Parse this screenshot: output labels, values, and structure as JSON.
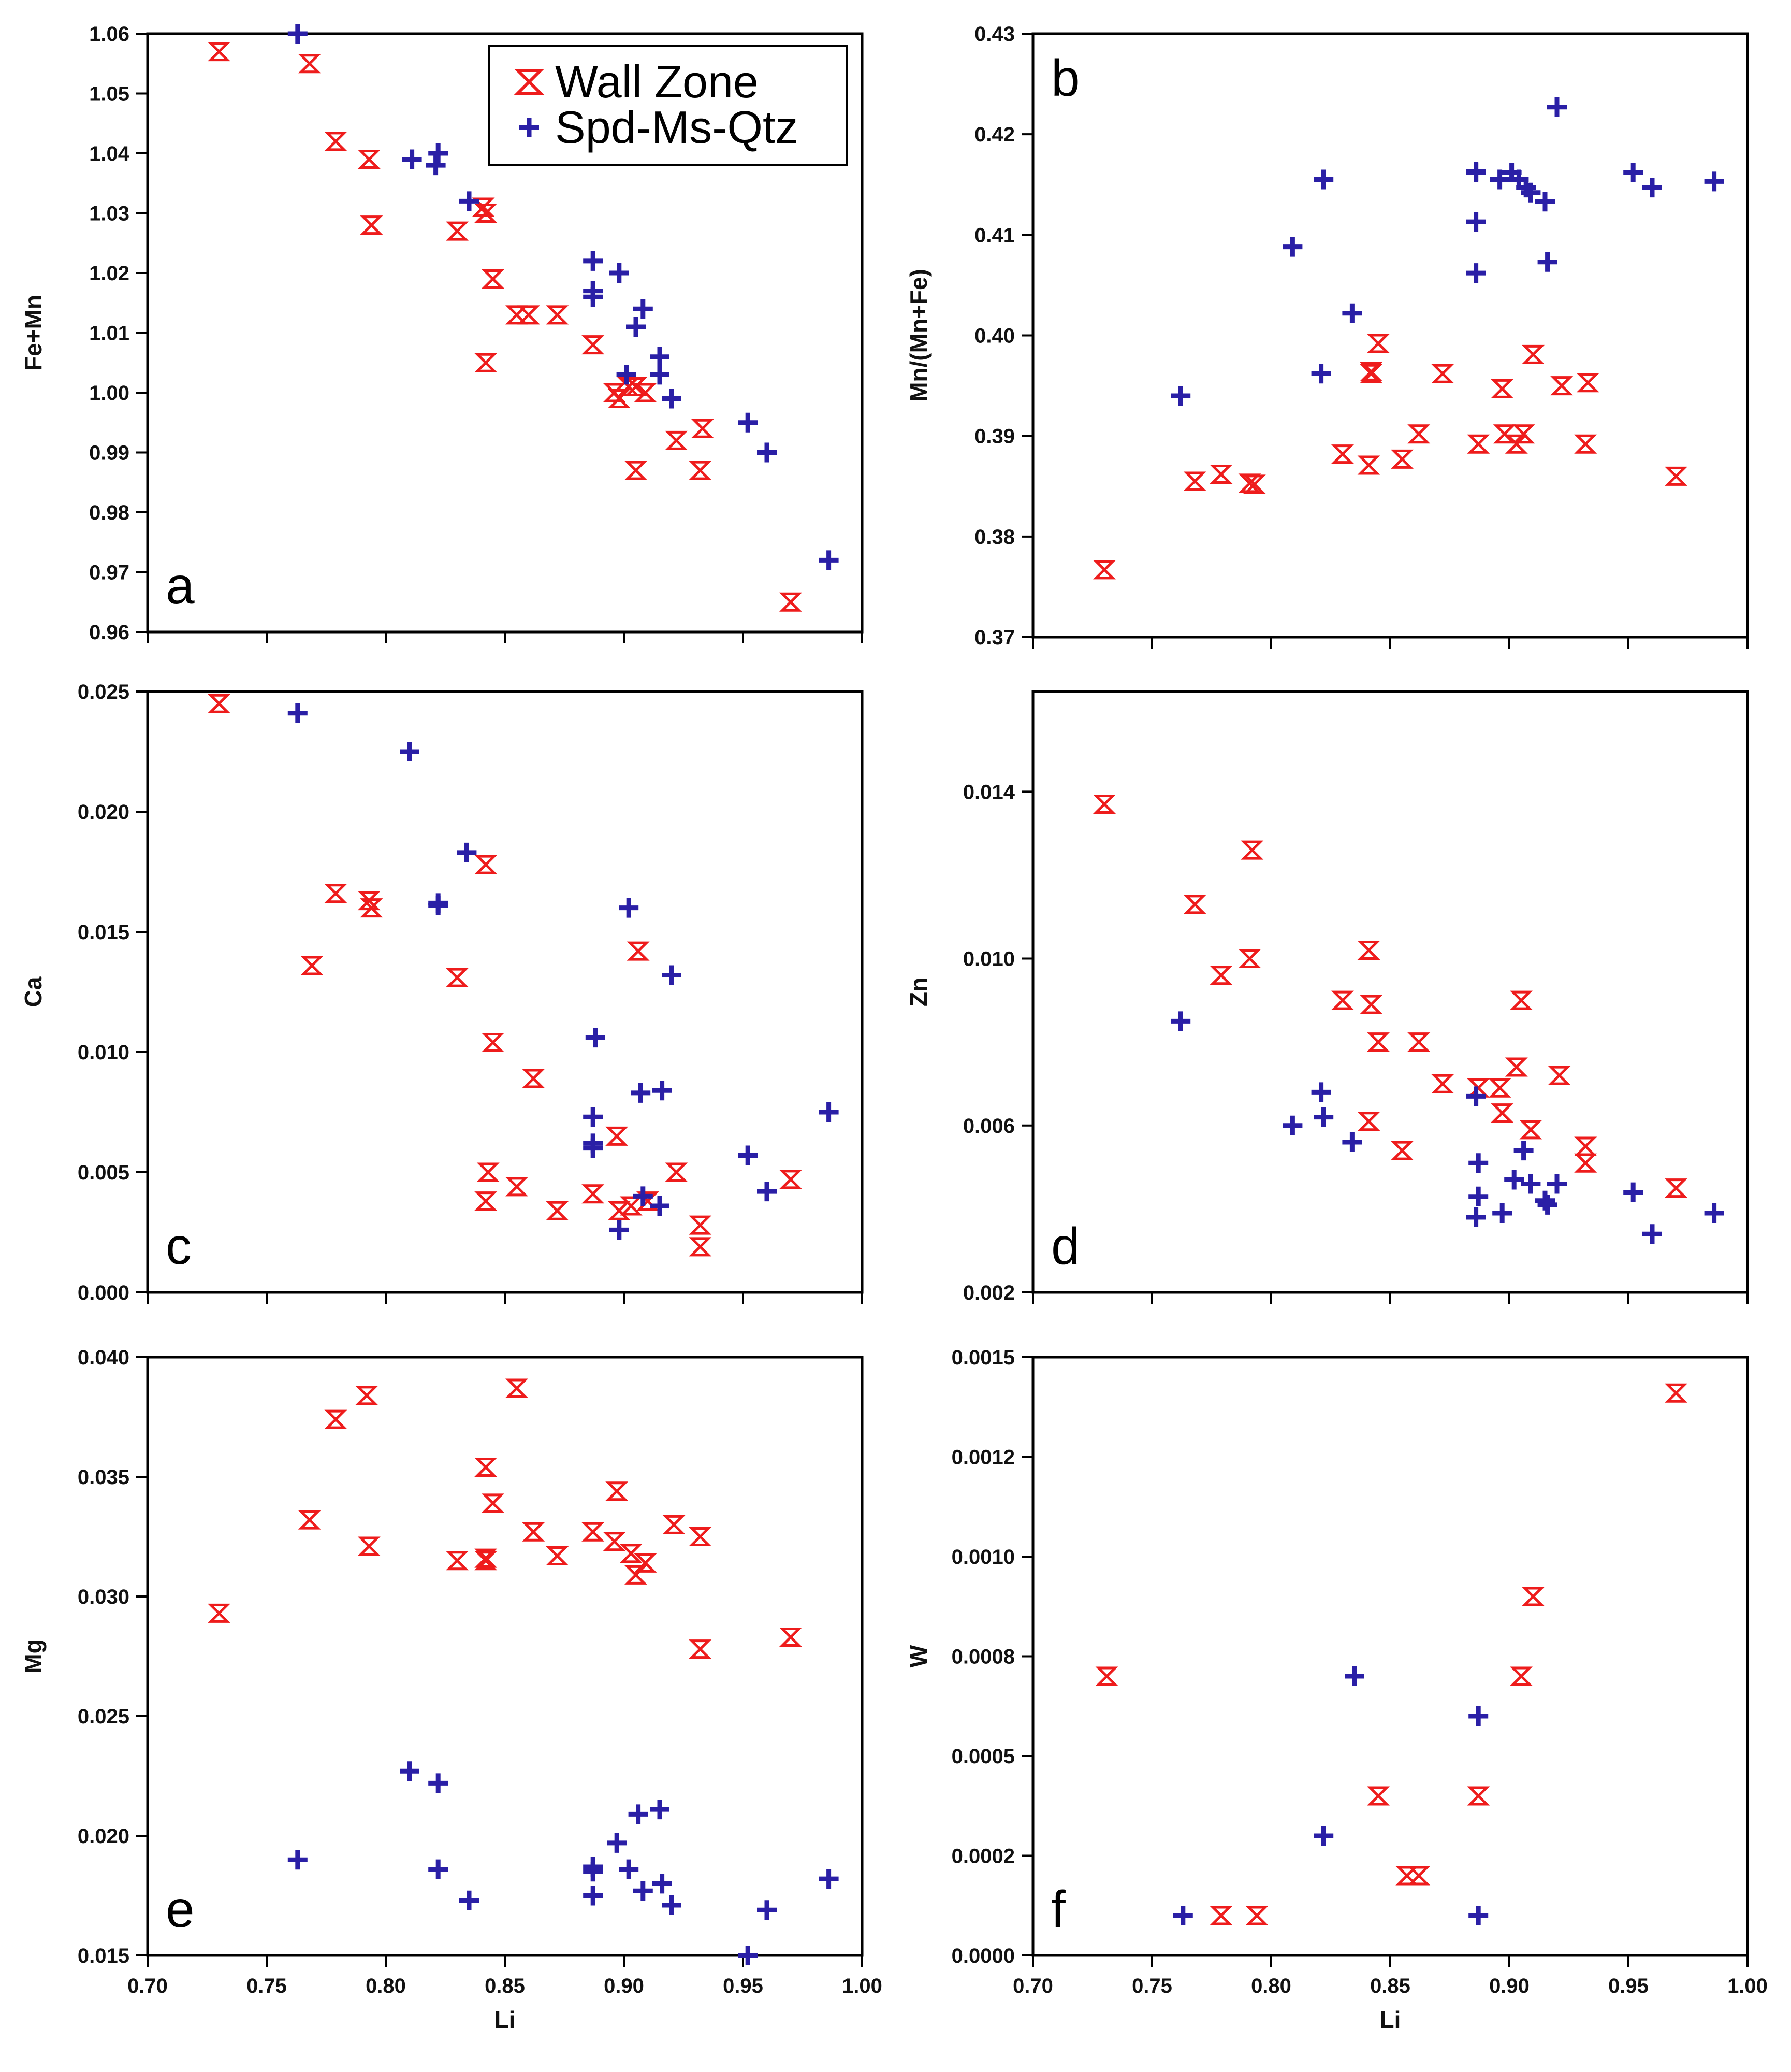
{
  "figure": {
    "legend": [
      {
        "label": "Wall Zone",
        "marker": "hourglass",
        "color": "#ee1c1c"
      },
      {
        "label": "Spd-Ms-Qtz",
        "marker": "plus",
        "color": "#2a1fa6"
      }
    ],
    "colors": {
      "wall": "#ee1c1c",
      "spd": "#2a1fa6",
      "axis": "#000000"
    }
  },
  "chart_data": [
    {
      "id": "a",
      "type": "scatter",
      "panel_label": "a",
      "xlabel": "",
      "ylabel": "Fe+Mn",
      "xlim": [
        0.7,
        1.0
      ],
      "ylim": [
        0.96,
        1.06
      ],
      "xticks": [
        0.7,
        0.75,
        0.8,
        0.85,
        0.9,
        0.95,
        1.0
      ],
      "xtick_labels": [],
      "yticks": [
        0.96,
        0.97,
        0.98,
        0.99,
        1.0,
        1.01,
        1.02,
        1.03,
        1.04,
        1.05,
        1.06
      ],
      "ytick_labels": [
        "0.96",
        "0.97",
        "0.98",
        "0.99",
        "1.00",
        "1.01",
        "1.02",
        "1.03",
        "1.04",
        "1.05",
        "1.06"
      ],
      "legend_position": "top-right",
      "series": [
        {
          "name": "Wall Zone",
          "marker": "hourglass",
          "x": [
            0.73,
            0.768,
            0.779,
            0.793,
            0.794,
            0.83,
            0.841,
            0.842,
            0.842,
            0.845,
            0.855,
            0.86,
            0.872,
            0.887,
            0.896,
            0.898,
            0.902,
            0.905,
            0.909,
            0.905,
            0.922,
            0.933,
            0.932,
            0.97
          ],
          "y": [
            1.057,
            1.055,
            1.042,
            1.039,
            1.028,
            1.027,
            1.031,
            1.03,
            1.005,
            1.019,
            1.013,
            1.013,
            1.013,
            1.008,
            1.0,
            0.999,
            1.001,
            1.001,
            1.0,
            0.987,
            0.992,
            0.994,
            0.987,
            0.965
          ]
        },
        {
          "name": "Spd-Ms-Qtz",
          "marker": "plus",
          "x": [
            0.763,
            0.811,
            0.821,
            0.822,
            0.835,
            0.887,
            0.887,
            0.887,
            0.898,
            0.901,
            0.905,
            0.908,
            0.915,
            0.915,
            0.92,
            0.952,
            0.96,
            0.986
          ],
          "y": [
            1.06,
            1.039,
            1.038,
            1.04,
            1.032,
            1.022,
            1.017,
            1.016,
            1.02,
            1.003,
            1.011,
            1.014,
            1.006,
            1.003,
            0.999,
            0.995,
            0.99,
            0.972
          ]
        }
      ]
    },
    {
      "id": "b",
      "type": "scatter",
      "panel_label": "b",
      "xlabel": "",
      "ylabel": "Mn/(Mn+Fe)",
      "xlim": [
        0.7,
        1.0
      ],
      "ylim": [
        0.37,
        0.43
      ],
      "xticks": [
        0.7,
        0.75,
        0.8,
        0.85,
        0.9,
        0.95,
        1.0
      ],
      "xtick_labels": [],
      "yticks": [
        0.37,
        0.38,
        0.39,
        0.4,
        0.41,
        0.42,
        0.43
      ],
      "ytick_labels": [
        "0.37",
        "0.38",
        "0.39",
        "0.40",
        "0.41",
        "0.42",
        "0.43"
      ],
      "series": [
        {
          "name": "Wall Zone",
          "marker": "hourglass",
          "x": [
            0.73,
            0.768,
            0.779,
            0.791,
            0.793,
            0.83,
            0.841,
            0.842,
            0.842,
            0.845,
            0.855,
            0.862,
            0.872,
            0.887,
            0.897,
            0.898,
            0.903,
            0.906,
            0.91,
            0.922,
            0.932,
            0.933,
            0.97
          ],
          "y": [
            0.3767,
            0.3855,
            0.3862,
            0.3853,
            0.3852,
            0.3882,
            0.3871,
            0.3964,
            0.3962,
            0.3992,
            0.3877,
            0.3902,
            0.3962,
            0.3892,
            0.3947,
            0.3902,
            0.3892,
            0.3902,
            0.3981,
            0.395,
            0.3892,
            0.3953,
            0.386
          ]
        },
        {
          "name": "Spd-Ms-Qtz",
          "marker": "plus",
          "x": [
            0.762,
            0.809,
            0.821,
            0.822,
            0.834,
            0.886,
            0.886,
            0.886,
            0.886,
            0.896,
            0.901,
            0.904,
            0.907,
            0.909,
            0.915,
            0.916,
            0.92,
            0.952,
            0.96,
            0.986
          ],
          "y": [
            0.394,
            0.4088,
            0.3962,
            0.4155,
            0.4022,
            0.4163,
            0.4162,
            0.4113,
            0.4062,
            0.4155,
            0.4162,
            0.4155,
            0.4147,
            0.4142,
            0.4133,
            0.4073,
            0.4227,
            0.4162,
            0.4147,
            0.4153
          ]
        }
      ]
    },
    {
      "id": "c",
      "type": "scatter",
      "panel_label": "c",
      "xlabel": "",
      "ylabel": "Ca",
      "xlim": [
        0.7,
        1.0
      ],
      "ylim": [
        0.0,
        0.025
      ],
      "xticks": [
        0.7,
        0.75,
        0.8,
        0.85,
        0.9,
        0.95,
        1.0
      ],
      "xtick_labels": [],
      "yticks": [
        0.0,
        0.005,
        0.01,
        0.015,
        0.02,
        0.025
      ],
      "ytick_labels": [
        "0.000",
        "0.005",
        "0.010",
        "0.015",
        "0.020",
        "0.025"
      ],
      "series": [
        {
          "name": "Wall Zone",
          "marker": "hourglass",
          "x": [
            0.73,
            0.769,
            0.779,
            0.793,
            0.794,
            0.83,
            0.842,
            0.843,
            0.842,
            0.845,
            0.855,
            0.862,
            0.872,
            0.887,
            0.897,
            0.898,
            0.903,
            0.906,
            0.91,
            0.922,
            0.932,
            0.932,
            0.97
          ],
          "y": [
            0.0245,
            0.0136,
            0.0166,
            0.0163,
            0.016,
            0.0131,
            0.0178,
            0.005,
            0.0038,
            0.0104,
            0.0044,
            0.0089,
            0.0034,
            0.0041,
            0.0065,
            0.0034,
            0.0036,
            0.0142,
            0.0038,
            0.005,
            0.0028,
            0.0019,
            0.0047
          ]
        },
        {
          "name": "Spd-Ms-Qtz",
          "marker": "plus",
          "x": [
            0.763,
            0.81,
            0.822,
            0.822,
            0.834,
            0.887,
            0.887,
            0.887,
            0.888,
            0.898,
            0.902,
            0.907,
            0.908,
            0.915,
            0.916,
            0.92,
            0.952,
            0.96,
            0.986
          ],
          "y": [
            0.0241,
            0.0225,
            0.0161,
            0.0162,
            0.0183,
            0.0073,
            0.0062,
            0.006,
            0.0106,
            0.0026,
            0.016,
            0.0083,
            0.004,
            0.0036,
            0.0084,
            0.0132,
            0.0057,
            0.0042,
            0.0075
          ]
        }
      ]
    },
    {
      "id": "d",
      "type": "scatter",
      "panel_label": "d",
      "xlabel": "",
      "ylabel": "Zn",
      "xlim": [
        0.7,
        1.0
      ],
      "ylim": [
        0.002,
        0.0164
      ],
      "xticks": [
        0.7,
        0.75,
        0.8,
        0.85,
        0.9,
        0.95,
        1.0
      ],
      "xtick_labels": [],
      "yticks": [
        0.002,
        0.006,
        0.01,
        0.014
      ],
      "ytick_labels": [
        "0.002",
        "0.006",
        "0.010",
        "0.014"
      ],
      "series": [
        {
          "name": "Wall Zone",
          "marker": "hourglass",
          "x": [
            0.73,
            0.768,
            0.779,
            0.791,
            0.792,
            0.83,
            0.841,
            0.842,
            0.845,
            0.841,
            0.855,
            0.862,
            0.872,
            0.887,
            0.896,
            0.897,
            0.903,
            0.905,
            0.909,
            0.921,
            0.932,
            0.932,
            0.97
          ],
          "y": [
            0.0137,
            0.0113,
            0.0096,
            0.01,
            0.0126,
            0.009,
            0.0102,
            0.0089,
            0.008,
            0.0061,
            0.0054,
            0.008,
            0.007,
            0.0069,
            0.0069,
            0.0063,
            0.0074,
            0.009,
            0.0059,
            0.0072,
            0.0055,
            0.0051,
            0.0045
          ]
        },
        {
          "name": "Spd-Ms-Qtz",
          "marker": "plus",
          "x": [
            0.762,
            0.809,
            0.821,
            0.822,
            0.834,
            0.886,
            0.887,
            0.887,
            0.886,
            0.897,
            0.902,
            0.906,
            0.909,
            0.915,
            0.916,
            0.92,
            0.952,
            0.96,
            0.986
          ],
          "y": [
            0.0085,
            0.006,
            0.0068,
            0.0062,
            0.0056,
            0.0067,
            0.0051,
            0.0043,
            0.0038,
            0.0039,
            0.0047,
            0.0054,
            0.0046,
            0.0042,
            0.0041,
            0.0046,
            0.0044,
            0.0034,
            0.0039
          ]
        }
      ]
    },
    {
      "id": "e",
      "type": "scatter",
      "panel_label": "e",
      "xlabel": "Li",
      "ylabel": "Mg",
      "xlim": [
        0.7,
        1.0
      ],
      "ylim": [
        0.015,
        0.04
      ],
      "xticks": [
        0.7,
        0.75,
        0.8,
        0.85,
        0.9,
        0.95,
        1.0
      ],
      "xtick_labels": [
        "0.70",
        "0.75",
        "0.80",
        "0.85",
        "0.90",
        "0.95",
        "1.00"
      ],
      "yticks": [
        0.015,
        0.02,
        0.025,
        0.03,
        0.035,
        0.04
      ],
      "ytick_labels": [
        "0.015",
        "0.020",
        "0.025",
        "0.030",
        "0.035",
        "0.040"
      ],
      "series": [
        {
          "name": "Wall Zone",
          "marker": "hourglass",
          "x": [
            0.73,
            0.768,
            0.779,
            0.792,
            0.793,
            0.83,
            0.842,
            0.842,
            0.842,
            0.845,
            0.855,
            0.862,
            0.872,
            0.887,
            0.896,
            0.897,
            0.903,
            0.905,
            0.909,
            0.921,
            0.932,
            0.932,
            0.97
          ],
          "y": [
            0.0293,
            0.0332,
            0.0374,
            0.0384,
            0.0321,
            0.0315,
            0.0354,
            0.0316,
            0.0315,
            0.0339,
            0.0387,
            0.0327,
            0.0317,
            0.0327,
            0.0323,
            0.0344,
            0.0318,
            0.0309,
            0.0314,
            0.033,
            0.0325,
            0.0278,
            0.0283
          ]
        },
        {
          "name": "Spd-Ms-Qtz",
          "marker": "plus",
          "x": [
            0.763,
            0.81,
            0.822,
            0.822,
            0.835,
            0.887,
            0.887,
            0.887,
            0.897,
            0.902,
            0.906,
            0.908,
            0.915,
            0.916,
            0.92,
            0.952,
            0.96,
            0.986
          ],
          "y": [
            0.019,
            0.0227,
            0.0222,
            0.0186,
            0.0173,
            0.0185,
            0.0187,
            0.0175,
            0.0197,
            0.0186,
            0.0209,
            0.0177,
            0.0211,
            0.018,
            0.0171,
            0.015,
            0.0169,
            0.0182
          ]
        }
      ]
    },
    {
      "id": "f",
      "type": "scatter",
      "panel_label": "f",
      "xlabel": "Li",
      "ylabel": "W",
      "xlim": [
        0.7,
        1.0
      ],
      "ylim": [
        0.0,
        0.0015
      ],
      "xticks": [
        0.7,
        0.75,
        0.8,
        0.85,
        0.9,
        0.95,
        1.0
      ],
      "xtick_labels": [
        "0.70",
        "0.75",
        "0.80",
        "0.85",
        "0.90",
        "0.95",
        "1.00"
      ],
      "yticks": [
        0.0,
        0.00025,
        0.0005,
        0.00075,
        0.001,
        0.00125,
        0.0015
      ],
      "ytick_labels": [
        "0.0000",
        "0.0002",
        "0.0005",
        "0.0008",
        "0.0010",
        "0.0012",
        "0.0015"
      ],
      "series": [
        {
          "name": "Wall Zone",
          "marker": "hourglass",
          "x": [
            0.731,
            0.779,
            0.794,
            0.845,
            0.857,
            0.862,
            0.887,
            0.905,
            0.91,
            0.97
          ],
          "y": [
            0.0007,
            0.0001,
            0.0001,
            0.0004,
            0.0002,
            0.0002,
            0.0004,
            0.0007,
            0.0009,
            0.00141
          ]
        },
        {
          "name": "Spd-Ms-Qtz",
          "marker": "plus",
          "x": [
            0.763,
            0.822,
            0.835,
            0.887,
            0.887
          ],
          "y": [
            0.0001,
            0.0003,
            0.0007,
            0.0006,
            0.0001
          ]
        }
      ]
    }
  ]
}
